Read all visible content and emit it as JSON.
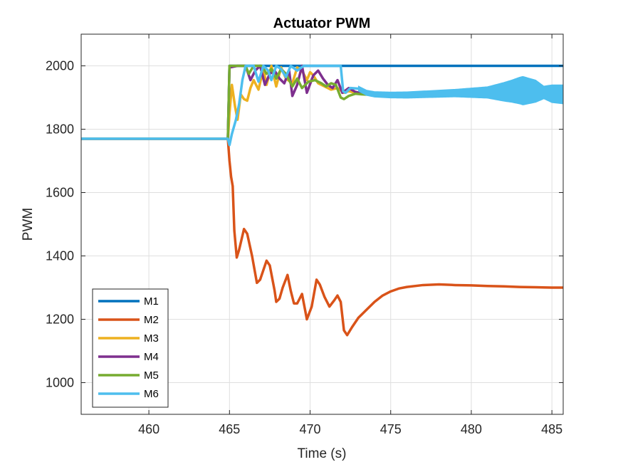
{
  "chart_data": {
    "type": "line",
    "title": "Actuator PWM",
    "xlabel": "Time (s)",
    "ylabel": "PWM",
    "xlim": [
      455.8,
      485.7
    ],
    "ylim": [
      900,
      2100
    ],
    "xticks": [
      460,
      465,
      470,
      475,
      480,
      485
    ],
    "yticks": [
      1000,
      1200,
      1400,
      1600,
      1800,
      2000
    ],
    "grid": true,
    "legend_location": "bottom-left",
    "series": [
      {
        "name": "M1",
        "color": "#0072BD",
        "points": [
          [
            455.8,
            1770
          ],
          [
            464.9,
            1770
          ],
          [
            465.0,
            2000
          ],
          [
            485.7,
            2000
          ]
        ]
      },
      {
        "name": "M2",
        "color": "#D95319",
        "points": [
          [
            455.8,
            1770
          ],
          [
            464.9,
            1770
          ],
          [
            465.0,
            1700
          ],
          [
            465.1,
            1650
          ],
          [
            465.2,
            1620
          ],
          [
            465.3,
            1480
          ],
          [
            465.45,
            1395
          ],
          [
            465.6,
            1420
          ],
          [
            465.9,
            1485
          ],
          [
            466.1,
            1470
          ],
          [
            466.4,
            1400
          ],
          [
            466.7,
            1315
          ],
          [
            466.9,
            1325
          ],
          [
            467.3,
            1385
          ],
          [
            467.5,
            1370
          ],
          [
            467.8,
            1290
          ],
          [
            467.9,
            1255
          ],
          [
            468.1,
            1265
          ],
          [
            468.3,
            1300
          ],
          [
            468.6,
            1340
          ],
          [
            468.8,
            1290
          ],
          [
            469.0,
            1250
          ],
          [
            469.2,
            1250
          ],
          [
            469.5,
            1280
          ],
          [
            469.8,
            1200
          ],
          [
            470.1,
            1240
          ],
          [
            470.4,
            1325
          ],
          [
            470.6,
            1310
          ],
          [
            470.9,
            1270
          ],
          [
            471.2,
            1240
          ],
          [
            471.5,
            1260
          ],
          [
            471.7,
            1275
          ],
          [
            471.9,
            1255
          ],
          [
            472.1,
            1165
          ],
          [
            472.3,
            1150
          ],
          [
            472.6,
            1175
          ],
          [
            473.0,
            1205
          ],
          [
            473.5,
            1230
          ],
          [
            474.0,
            1255
          ],
          [
            474.5,
            1275
          ],
          [
            475.0,
            1288
          ],
          [
            475.5,
            1297
          ],
          [
            476.0,
            1302
          ],
          [
            477.0,
            1308
          ],
          [
            478.0,
            1310
          ],
          [
            479.0,
            1308
          ],
          [
            480.0,
            1307
          ],
          [
            481.0,
            1305
          ],
          [
            482.0,
            1304
          ],
          [
            483.0,
            1302
          ],
          [
            484.0,
            1301
          ],
          [
            485.0,
            1300
          ],
          [
            485.7,
            1300
          ]
        ]
      },
      {
        "name": "M3",
        "color": "#EDB120",
        "points": [
          [
            455.8,
            1770
          ],
          [
            464.9,
            1770
          ],
          [
            465.0,
            1850
          ],
          [
            465.15,
            1940
          ],
          [
            465.35,
            1870
          ],
          [
            465.5,
            1830
          ],
          [
            465.7,
            1910
          ],
          [
            465.9,
            1895
          ],
          [
            466.1,
            1890
          ],
          [
            466.3,
            1930
          ],
          [
            466.5,
            1955
          ],
          [
            466.8,
            1925
          ],
          [
            467.1,
            1990
          ],
          [
            467.3,
            1940
          ],
          [
            467.6,
            2000
          ],
          [
            467.9,
            1935
          ],
          [
            468.2,
            1995
          ],
          [
            468.5,
            1960
          ],
          [
            468.9,
            1945
          ],
          [
            469.2,
            1995
          ],
          [
            469.5,
            1985
          ],
          [
            469.8,
            1955
          ],
          [
            470.0,
            1980
          ],
          [
            470.2,
            1970
          ],
          [
            470.5,
            1945
          ],
          [
            470.9,
            1935
          ],
          [
            471.3,
            1925
          ],
          [
            471.7,
            1930
          ],
          [
            472.1,
            1915
          ],
          [
            472.4,
            1920
          ],
          [
            472.8,
            1915
          ],
          [
            473.5,
            1910
          ],
          [
            474.5,
            1908
          ],
          [
            475.5,
            1906
          ],
          [
            477.0,
            1906
          ],
          [
            479.0,
            1906
          ],
          [
            481.0,
            1906
          ],
          [
            483.0,
            1906
          ],
          [
            485.7,
            1906
          ]
        ]
      },
      {
        "name": "M4",
        "color": "#7E2F8E",
        "points": [
          [
            455.8,
            1770
          ],
          [
            464.9,
            1770
          ],
          [
            465.0,
            1995
          ],
          [
            465.5,
            2000
          ],
          [
            466.0,
            2000
          ],
          [
            466.3,
            1955
          ],
          [
            466.6,
            1985
          ],
          [
            466.9,
            2000
          ],
          [
            467.2,
            1940
          ],
          [
            467.5,
            1975
          ],
          [
            467.8,
            1985
          ],
          [
            468.1,
            1960
          ],
          [
            468.4,
            1945
          ],
          [
            468.7,
            1985
          ],
          [
            468.9,
            1905
          ],
          [
            469.2,
            1940
          ],
          [
            469.5,
            2000
          ],
          [
            469.8,
            1915
          ],
          [
            470.2,
            1970
          ],
          [
            470.5,
            1985
          ],
          [
            470.8,
            1960
          ],
          [
            471.1,
            1940
          ],
          [
            471.4,
            1930
          ],
          [
            471.7,
            1955
          ],
          [
            472.0,
            1915
          ],
          [
            472.4,
            1930
          ],
          [
            472.8,
            1918
          ],
          [
            473.5,
            1910
          ],
          [
            474.5,
            1908
          ],
          [
            476.0,
            1906
          ],
          [
            478.0,
            1906
          ],
          [
            480.0,
            1906
          ],
          [
            482.0,
            1906
          ],
          [
            485.7,
            1906
          ]
        ]
      },
      {
        "name": "M5",
        "color": "#77AC30",
        "points": [
          [
            455.8,
            1770
          ],
          [
            464.9,
            1770
          ],
          [
            465.0,
            2000
          ],
          [
            466.0,
            2000
          ],
          [
            466.2,
            1975
          ],
          [
            466.5,
            2000
          ],
          [
            467.0,
            2000
          ],
          [
            467.3,
            1975
          ],
          [
            467.6,
            1990
          ],
          [
            467.9,
            1960
          ],
          [
            468.2,
            1990
          ],
          [
            468.5,
            1975
          ],
          [
            468.9,
            1935
          ],
          [
            469.2,
            1960
          ],
          [
            469.5,
            1930
          ],
          [
            469.9,
            1950
          ],
          [
            470.3,
            1955
          ],
          [
            470.7,
            1945
          ],
          [
            471.0,
            1935
          ],
          [
            471.3,
            1945
          ],
          [
            471.6,
            1940
          ],
          [
            471.9,
            1900
          ],
          [
            472.1,
            1895
          ],
          [
            472.4,
            1905
          ],
          [
            472.8,
            1912
          ],
          [
            473.2,
            1910
          ],
          [
            474.0,
            1908
          ],
          [
            475.0,
            1906
          ],
          [
            477.0,
            1906
          ],
          [
            479.0,
            1906
          ],
          [
            481.0,
            1906
          ],
          [
            483.0,
            1906
          ],
          [
            485.7,
            1906
          ]
        ]
      },
      {
        "name": "M6",
        "color": "#4DBEEE",
        "points": [
          [
            455.8,
            1770
          ],
          [
            464.9,
            1770
          ],
          [
            465.0,
            1750
          ],
          [
            465.15,
            1785
          ],
          [
            465.4,
            1830
          ],
          [
            465.6,
            1880
          ],
          [
            465.8,
            1955
          ],
          [
            466.0,
            2000
          ],
          [
            466.5,
            2000
          ],
          [
            466.8,
            1950
          ],
          [
            467.1,
            2000
          ],
          [
            467.4,
            1985
          ],
          [
            467.6,
            1955
          ],
          [
            467.9,
            2000
          ],
          [
            468.2,
            1990
          ],
          [
            468.5,
            1965
          ],
          [
            468.8,
            2000
          ],
          [
            469.2,
            1985
          ],
          [
            469.6,
            2000
          ],
          [
            470.0,
            2000
          ],
          [
            471.0,
            2000
          ],
          [
            471.9,
            2000
          ],
          [
            472.05,
            1920
          ],
          [
            472.2,
            1915
          ],
          [
            472.5,
            1930
          ],
          [
            473.0,
            1928
          ],
          [
            473.5,
            1915
          ],
          [
            474.0,
            1910
          ],
          [
            475.0,
            1908
          ],
          [
            476.0,
            1908
          ],
          [
            477.0,
            1910
          ],
          [
            478.0,
            1912
          ],
          [
            479.0,
            1914
          ],
          [
            480.0,
            1915
          ],
          [
            481.0,
            1916
          ],
          [
            482.0,
            1918
          ],
          [
            483.0,
            1922
          ],
          [
            484.0,
            1920
          ],
          [
            485.0,
            1912
          ],
          [
            485.7,
            1910
          ]
        ]
      }
    ],
    "oscillation_band": {
      "series": "M6",
      "segments": [
        [
          473.0,
          8
        ],
        [
          476.0,
          10
        ],
        [
          479.0,
          12
        ],
        [
          481.0,
          18
        ],
        [
          482.5,
          35
        ],
        [
          483.2,
          45
        ],
        [
          484.0,
          35
        ],
        [
          484.5,
          20
        ],
        [
          485.0,
          28
        ],
        [
          485.7,
          30
        ]
      ]
    }
  }
}
